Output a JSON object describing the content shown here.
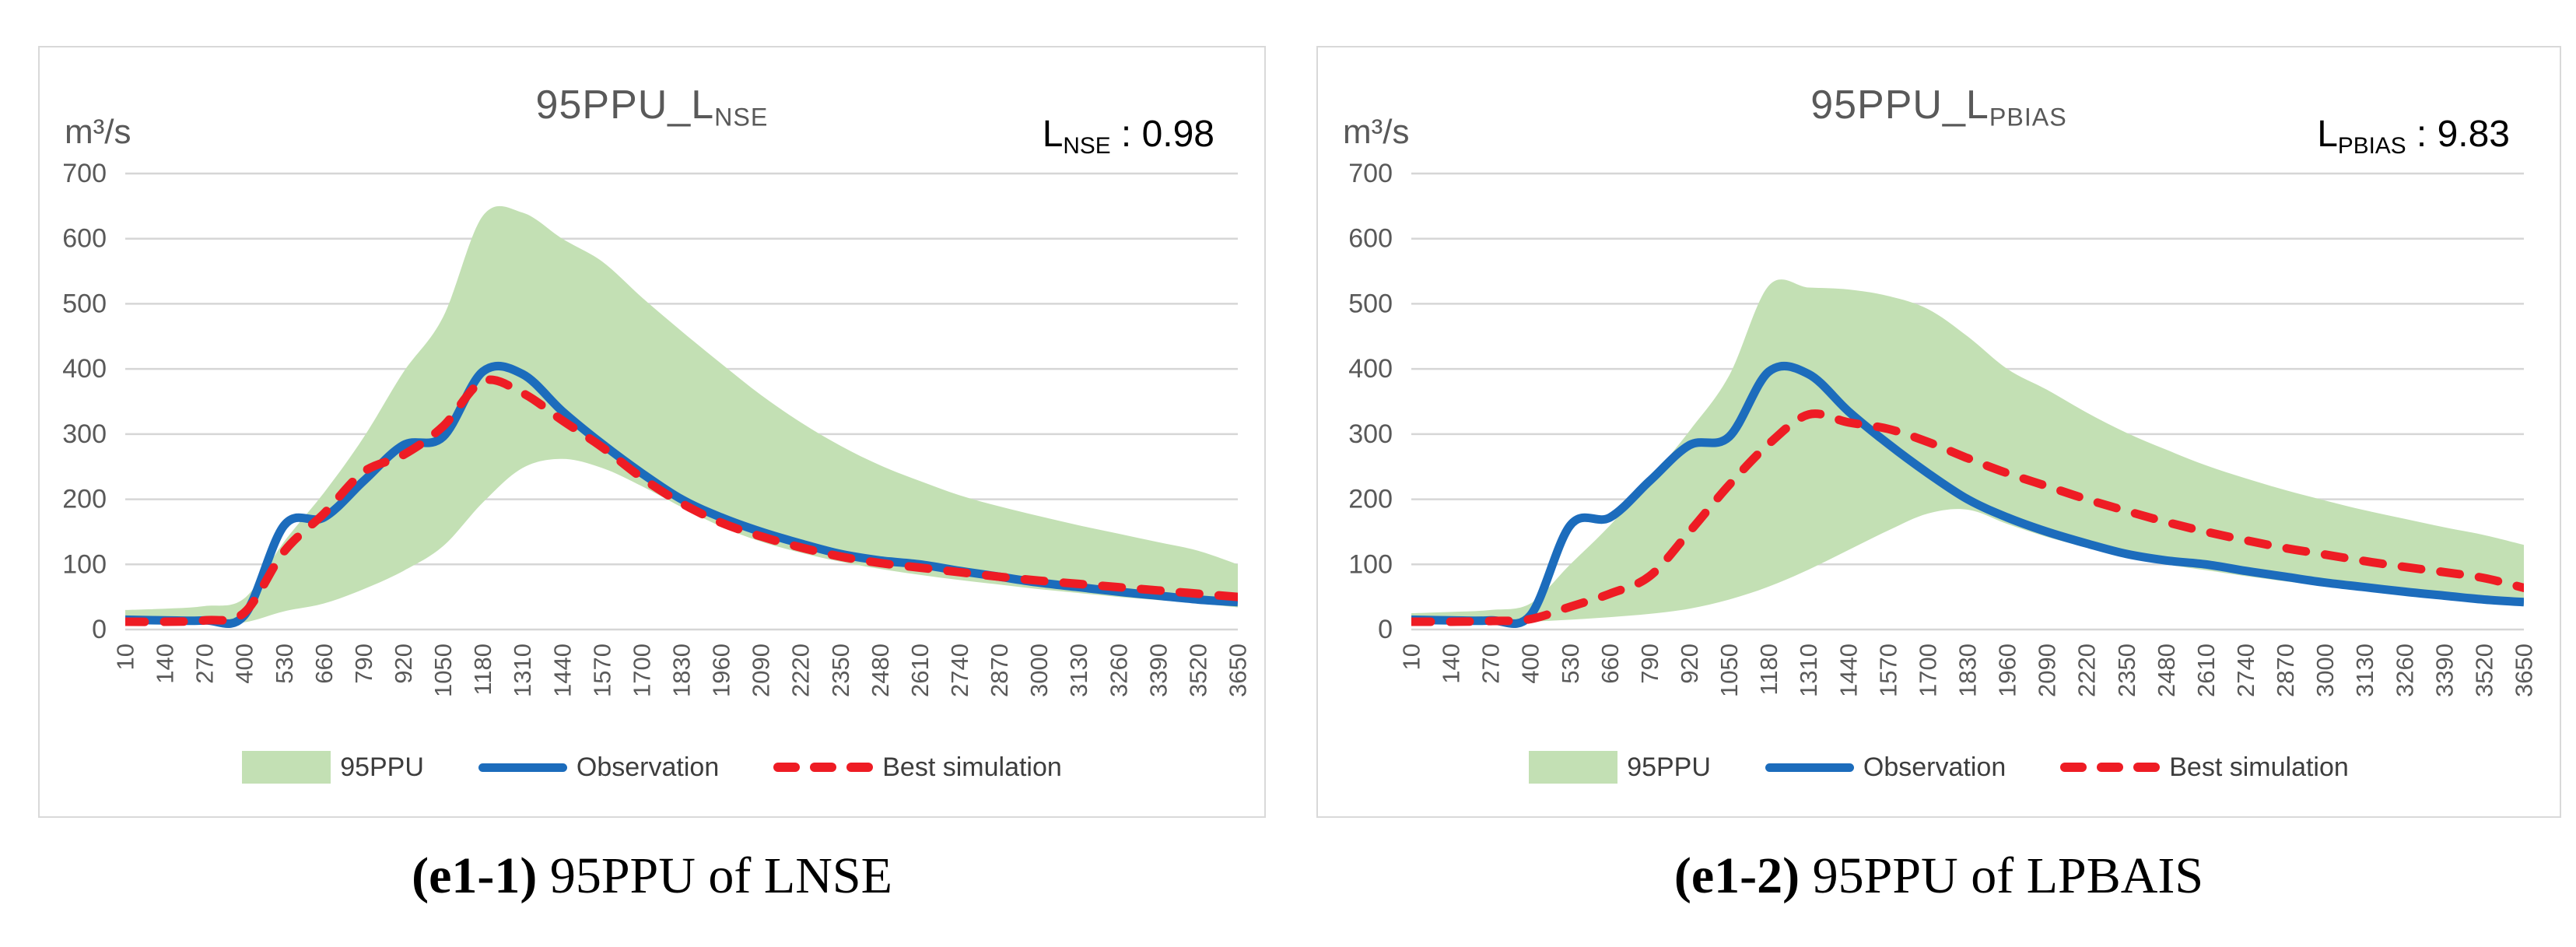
{
  "colors": {
    "band": "#c3e0b4",
    "observation": "#1c6cbc",
    "best": "#ee1c24",
    "grid": "#d6d6d6",
    "axis_text": "#595959",
    "title_text": "#595959",
    "metric_text": "#000000",
    "legend_text": "#3d3d3d",
    "panel_border": "#d9d9d9"
  },
  "panels": [
    {
      "unit": "m³/s",
      "title": {
        "main": "95PPU_L",
        "sub": "NSE"
      },
      "metric": {
        "base": "L",
        "sub": "NSE",
        "sep": " : ",
        "value": "0.98"
      },
      "legend": [
        {
          "type": "band",
          "label": "95PPU"
        },
        {
          "type": "line",
          "label": "Observation"
        },
        {
          "type": "dash",
          "label": "Best simulation"
        }
      ],
      "caption": {
        "tag": "(e1-1)",
        "rest": " 95PPU of LNSE"
      }
    },
    {
      "unit": "m³/s",
      "title": {
        "main": "95PPU_L",
        "sub": "PBIAS"
      },
      "metric": {
        "base": "L",
        "sub": "PBIAS",
        "sep": " : ",
        "value": "9.83"
      },
      "legend": [
        {
          "type": "band",
          "label": "95PPU"
        },
        {
          "type": "line",
          "label": "Observation"
        },
        {
          "type": "dash",
          "label": "Best simulation"
        }
      ],
      "caption": {
        "tag": "(e1-2)",
        "rest": " 95PPU of LPBAIS"
      }
    }
  ],
  "chart_data": [
    {
      "type": "area",
      "title": "95PPU_L_NSE",
      "ylabel": "m³/s",
      "ylim": [
        0,
        700
      ],
      "yticks": [
        0,
        100,
        200,
        300,
        400,
        500,
        600,
        700
      ],
      "grid": true,
      "legend_position": "bottom",
      "annotation": {
        "label": "L_NSE",
        "value": 0.98
      },
      "x": [
        10,
        140,
        270,
        400,
        530,
        660,
        790,
        920,
        1050,
        1180,
        1310,
        1440,
        1570,
        1700,
        1830,
        1960,
        2090,
        2220,
        2350,
        2480,
        2610,
        2740,
        2870,
        3000,
        3130,
        3260,
        3390,
        3520,
        3650
      ],
      "band": {
        "name": "95PPU",
        "upper": [
          30,
          32,
          36,
          48,
          135,
          210,
          295,
          395,
          480,
          635,
          640,
          600,
          565,
          510,
          458,
          408,
          360,
          318,
          282,
          252,
          228,
          206,
          189,
          174,
          160,
          147,
          134,
          121,
          100
        ],
        "lower": [
          8,
          8,
          9,
          11,
          28,
          40,
          62,
          90,
          128,
          195,
          248,
          262,
          248,
          220,
          188,
          158,
          135,
          118,
          104,
          93,
          84,
          76,
          69,
          62,
          56,
          50,
          45,
          40,
          34
        ]
      },
      "series": [
        {
          "name": "Observation",
          "style": "solid",
          "values": [
            15,
            14,
            14,
            22,
            160,
            172,
            228,
            283,
            296,
            396,
            392,
            335,
            285,
            240,
            200,
            172,
            150,
            132,
            116,
            106,
            100,
            90,
            81,
            72,
            65,
            58,
            52,
            46,
            42
          ]
        },
        {
          "name": "Best simulation",
          "style": "dashed",
          "values": [
            12,
            12,
            14,
            26,
            120,
            178,
            242,
            268,
            312,
            381,
            363,
            321,
            280,
            233,
            194,
            164,
            143,
            126,
            112,
            102,
            95,
            88,
            81,
            75,
            70,
            65,
            60,
            55,
            50
          ]
        }
      ]
    },
    {
      "type": "area",
      "title": "95PPU_L_PBIAS",
      "ylabel": "m³/s",
      "ylim": [
        0,
        700
      ],
      "yticks": [
        0,
        100,
        200,
        300,
        400,
        500,
        600,
        700
      ],
      "grid": true,
      "legend_position": "bottom",
      "annotation": {
        "label": "L_PBIAS",
        "value": 9.83
      },
      "x": [
        10,
        140,
        270,
        400,
        530,
        660,
        790,
        920,
        1050,
        1180,
        1310,
        1440,
        1570,
        1700,
        1830,
        1960,
        2090,
        2220,
        2350,
        2480,
        2610,
        2740,
        2870,
        3000,
        3130,
        3260,
        3390,
        3520,
        3650
      ],
      "band": {
        "name": "95PPU",
        "upper": [
          25,
          27,
          30,
          40,
          100,
          160,
          230,
          305,
          390,
          528,
          525,
          522,
          512,
          492,
          450,
          400,
          368,
          333,
          302,
          276,
          252,
          232,
          214,
          198,
          183,
          170,
          157,
          145,
          130
        ],
        "lower": [
          10,
          10,
          10,
          12,
          15,
          19,
          24,
          32,
          46,
          66,
          92,
          122,
          152,
          178,
          184,
          162,
          142,
          126,
          112,
          100,
          91,
          82,
          74,
          67,
          61,
          55,
          49,
          44,
          37
        ]
      },
      "series": [
        {
          "name": "Observation",
          "style": "solid",
          "values": [
            15,
            14,
            14,
            22,
            160,
            172,
            228,
            283,
            296,
            396,
            392,
            335,
            285,
            240,
            200,
            172,
            150,
            132,
            116,
            106,
            100,
            90,
            81,
            72,
            65,
            58,
            52,
            46,
            42
          ]
        },
        {
          "name": "Best simulation",
          "style": "dashed",
          "values": [
            12,
            12,
            13,
            16,
            35,
            55,
            82,
            150,
            222,
            285,
            330,
            318,
            308,
            288,
            263,
            240,
            220,
            200,
            182,
            165,
            150,
            137,
            125,
            115,
            105,
            96,
            88,
            79,
            64
          ]
        }
      ]
    }
  ]
}
